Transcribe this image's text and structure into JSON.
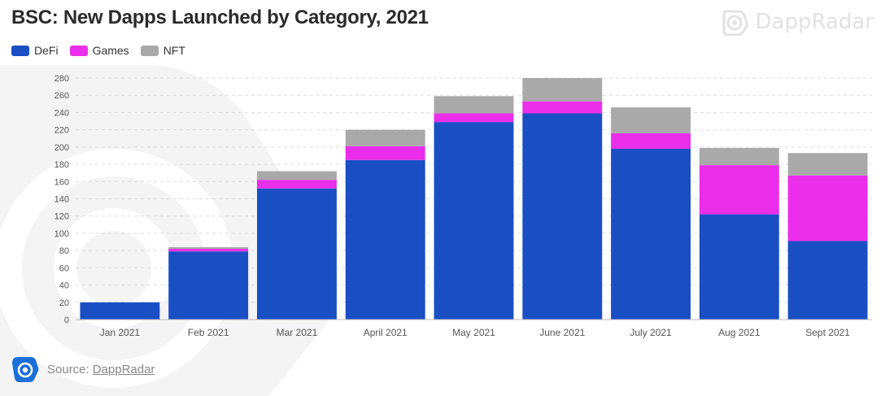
{
  "header": {
    "title": "BSC: New Dapps Launched by Category, 2021",
    "brand_name": "DappRadar"
  },
  "source": {
    "label": "Source:",
    "link_text": "DappRadar"
  },
  "colors": {
    "DeFi": "#1a4fc4",
    "Games": "#ea2eea",
    "NFT": "#a9a9a9"
  },
  "chart_data": {
    "type": "bar",
    "stacked": true,
    "categories": [
      "Jan 2021",
      "Feb 2021",
      "Mar 2021",
      "April 2021",
      "May 2021",
      "June 2021",
      "July 2021",
      "Aug 2021",
      "Sept 2021"
    ],
    "series": [
      {
        "name": "DeFi",
        "values": [
          20,
          79,
          152,
          185,
          229,
          239,
          198,
          122,
          91
        ]
      },
      {
        "name": "Games",
        "values": [
          0,
          3,
          10,
          16,
          10,
          14,
          18,
          57,
          76
        ]
      },
      {
        "name": "NFT",
        "values": [
          0,
          2,
          10,
          19,
          20,
          27,
          30,
          20,
          26
        ]
      }
    ],
    "yticks": [
      0,
      20,
      40,
      60,
      80,
      100,
      120,
      140,
      160,
      180,
      200,
      220,
      240,
      260,
      280
    ],
    "ylim": [
      0,
      280
    ],
    "xlabel": "",
    "ylabel": "",
    "grid": true,
    "legend_position": "top-left"
  }
}
